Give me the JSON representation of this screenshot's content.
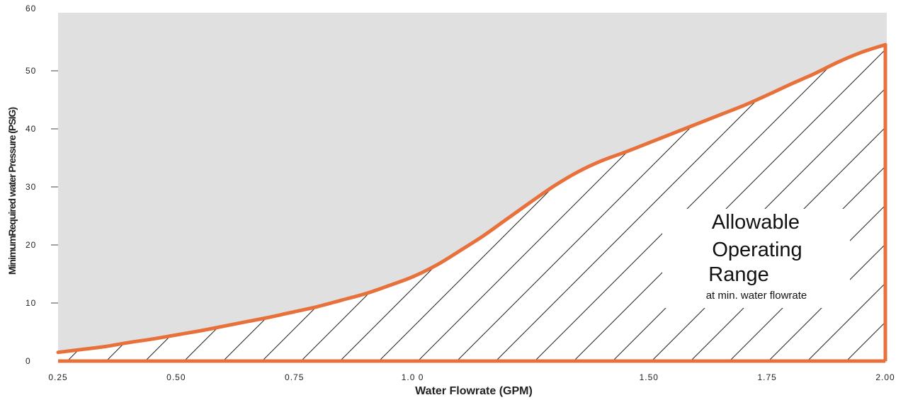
{
  "chart_data": {
    "type": "area",
    "xlabel": "Water Flowrate (GPM)",
    "ylabel": "MinimumRequired water Pressure (PSIG)",
    "xlim": [
      0.25,
      2.0
    ],
    "ylim": [
      0,
      60
    ],
    "x_ticks": [
      {
        "value": 0.25,
        "label": "0.25"
      },
      {
        "value": 0.5,
        "label": "0.50"
      },
      {
        "value": 0.75,
        "label": "0.75"
      },
      {
        "value": 1.0,
        "label": "1.0 0"
      },
      {
        "value": 1.5,
        "label": "1.50"
      },
      {
        "value": 1.75,
        "label": "1.75"
      },
      {
        "value": 2.0,
        "label": "2.00"
      }
    ],
    "y_ticks": [
      {
        "value": 0,
        "label": "0"
      },
      {
        "value": 10,
        "label": "10"
      },
      {
        "value": 20,
        "label": "20"
      },
      {
        "value": 30,
        "label": "30"
      },
      {
        "value": 40,
        "label": "40"
      },
      {
        "value": 50,
        "label": "50"
      },
      {
        "value": 60,
        "label": "60"
      }
    ],
    "series": [
      {
        "x": [
          0.25,
          0.3,
          0.35,
          0.4,
          0.45,
          0.5,
          0.55,
          0.6,
          0.65,
          0.7,
          0.75,
          0.8,
          0.85,
          0.9,
          0.95,
          1.0,
          1.05,
          1.1,
          1.15,
          1.2,
          1.25,
          1.3,
          1.35,
          1.4,
          1.45,
          1.5,
          1.55,
          1.6,
          1.65,
          1.7,
          1.75,
          1.8,
          1.85,
          1.9,
          1.95,
          2.0
        ],
        "y": [
          1.5,
          2.0,
          2.5,
          3.2,
          3.8,
          4.5,
          5.2,
          6.0,
          6.8,
          7.6,
          8.5,
          9.4,
          10.5,
          11.6,
          13.0,
          14.5,
          16.5,
          19.0,
          21.6,
          24.5,
          27.4,
          30.2,
          32.6,
          34.5,
          36.0,
          37.6,
          39.2,
          40.8,
          42.4,
          44.0,
          45.8,
          47.7,
          49.5,
          51.5,
          53.2,
          54.5
        ]
      }
    ],
    "region_label": {
      "line1": "Allowable",
      "line2": "Operating",
      "line3": "Range",
      "subtext": "at min. water flowrate"
    },
    "colors": {
      "background": "#e0e0e0",
      "curve": "#e8703a",
      "hatch": "#222222",
      "region_fill": "#ffffff"
    },
    "grid": false
  }
}
